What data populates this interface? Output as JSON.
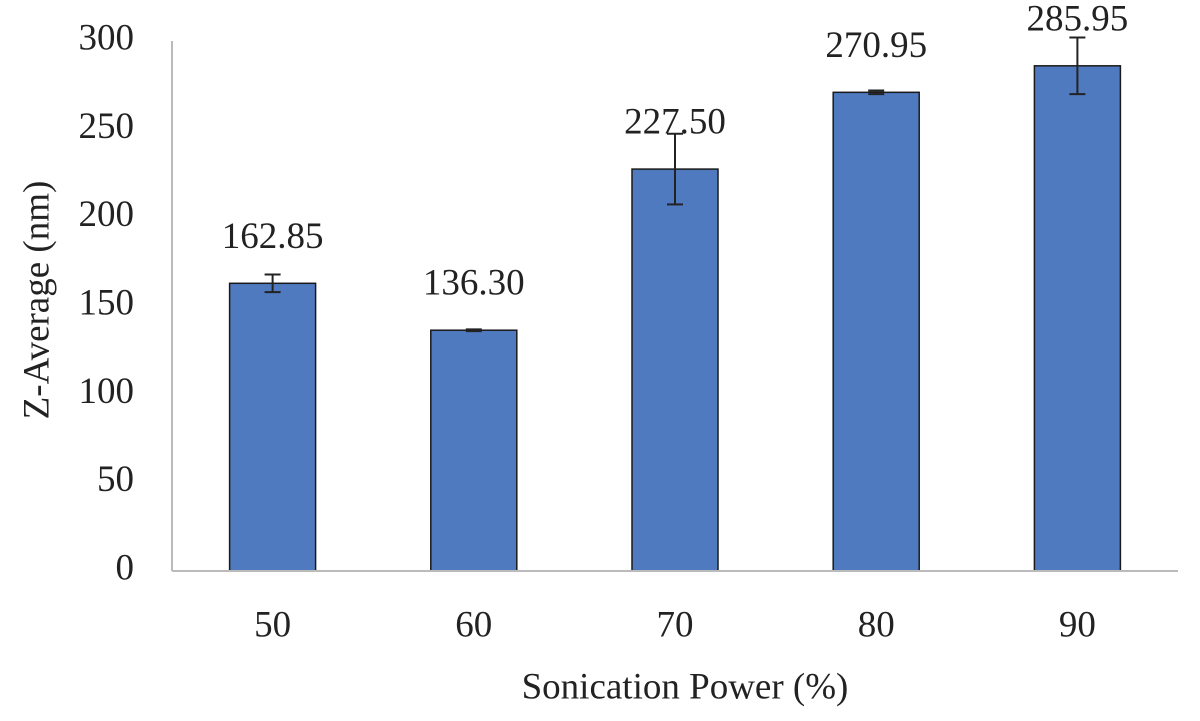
{
  "chart_data": {
    "type": "bar",
    "x_label": "Sonication Power (%)",
    "y_label": "Z-Average (nm)",
    "categories": [
      "50",
      "60",
      "70",
      "80",
      "90"
    ],
    "values": [
      162.85,
      136.3,
      227.5,
      270.95,
      285.95
    ],
    "value_labels": [
      "162.85",
      "136.30",
      "227.50",
      "270.95",
      "285.95"
    ],
    "errors": [
      5,
      0.5,
      20,
      1,
      16
    ],
    "color": "#4f7abf",
    "ylim": [
      0,
      300
    ],
    "yticks": [
      0,
      50,
      100,
      150,
      200,
      250,
      300
    ],
    "grid": false
  }
}
